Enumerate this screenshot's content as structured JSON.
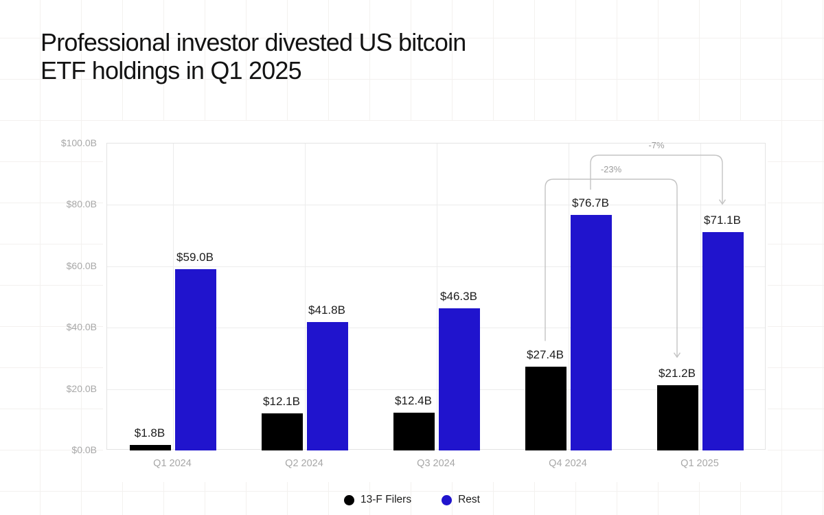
{
  "title_lines": [
    "Professional investor divested US bitcoin",
    "ETF holdings in Q1 2025"
  ],
  "chart_data": {
    "type": "bar",
    "title": "Professional investor divested US bitcoin ETF holdings in Q1 2025",
    "categories": [
      "Q1 2024",
      "Q2 2024",
      "Q3 2024",
      "Q4 2024",
      "Q1 2025"
    ],
    "series": [
      {
        "name": "13-F Filers",
        "color": "#000000",
        "values": [
          1.8,
          12.1,
          12.4,
          27.4,
          21.2
        ],
        "value_labels": [
          "$1.8B",
          "$12.1B",
          "$12.4B",
          "$27.4B",
          "$21.2B"
        ]
      },
      {
        "name": "Rest",
        "color": "#2014cd",
        "values": [
          59.0,
          41.8,
          46.3,
          76.7,
          71.1
        ],
        "value_labels": [
          "$59.0B",
          "$41.8B",
          "$46.3B",
          "$76.7B",
          "$71.1B"
        ]
      }
    ],
    "xlabel": "",
    "ylabel": "",
    "ylim": [
      0,
      100
    ],
    "yticks": [
      {
        "value": 0,
        "label": "$0.0B"
      },
      {
        "value": 20,
        "label": "$20.0B"
      },
      {
        "value": 40,
        "label": "$40.0B"
      },
      {
        "value": 60,
        "label": "$60.0B"
      },
      {
        "value": 80,
        "label": "$80.0B"
      },
      {
        "value": 100,
        "label": "$100.0B"
      }
    ],
    "grid": true,
    "legend_position": "bottom",
    "annotations": [
      {
        "label": "-23%",
        "from_category": "Q4 2024",
        "from_series": "13-F Filers",
        "to_category": "Q1 2025",
        "to_series": "13-F Filers"
      },
      {
        "label": "-7%",
        "from_category": "Q4 2024",
        "from_series": "Rest",
        "to_category": "Q1 2025",
        "to_series": "Rest"
      }
    ]
  },
  "colors": {
    "filers_black": "#000000",
    "rest_blue": "#2014cd",
    "axis_text": "#a7a7a7",
    "value_text": "#1c1c1c",
    "annotation_line": "#c3c3c3",
    "annotation_text": "#9d9d9d",
    "gridline": "#ececec",
    "background_grid": "#f3f1ef"
  }
}
